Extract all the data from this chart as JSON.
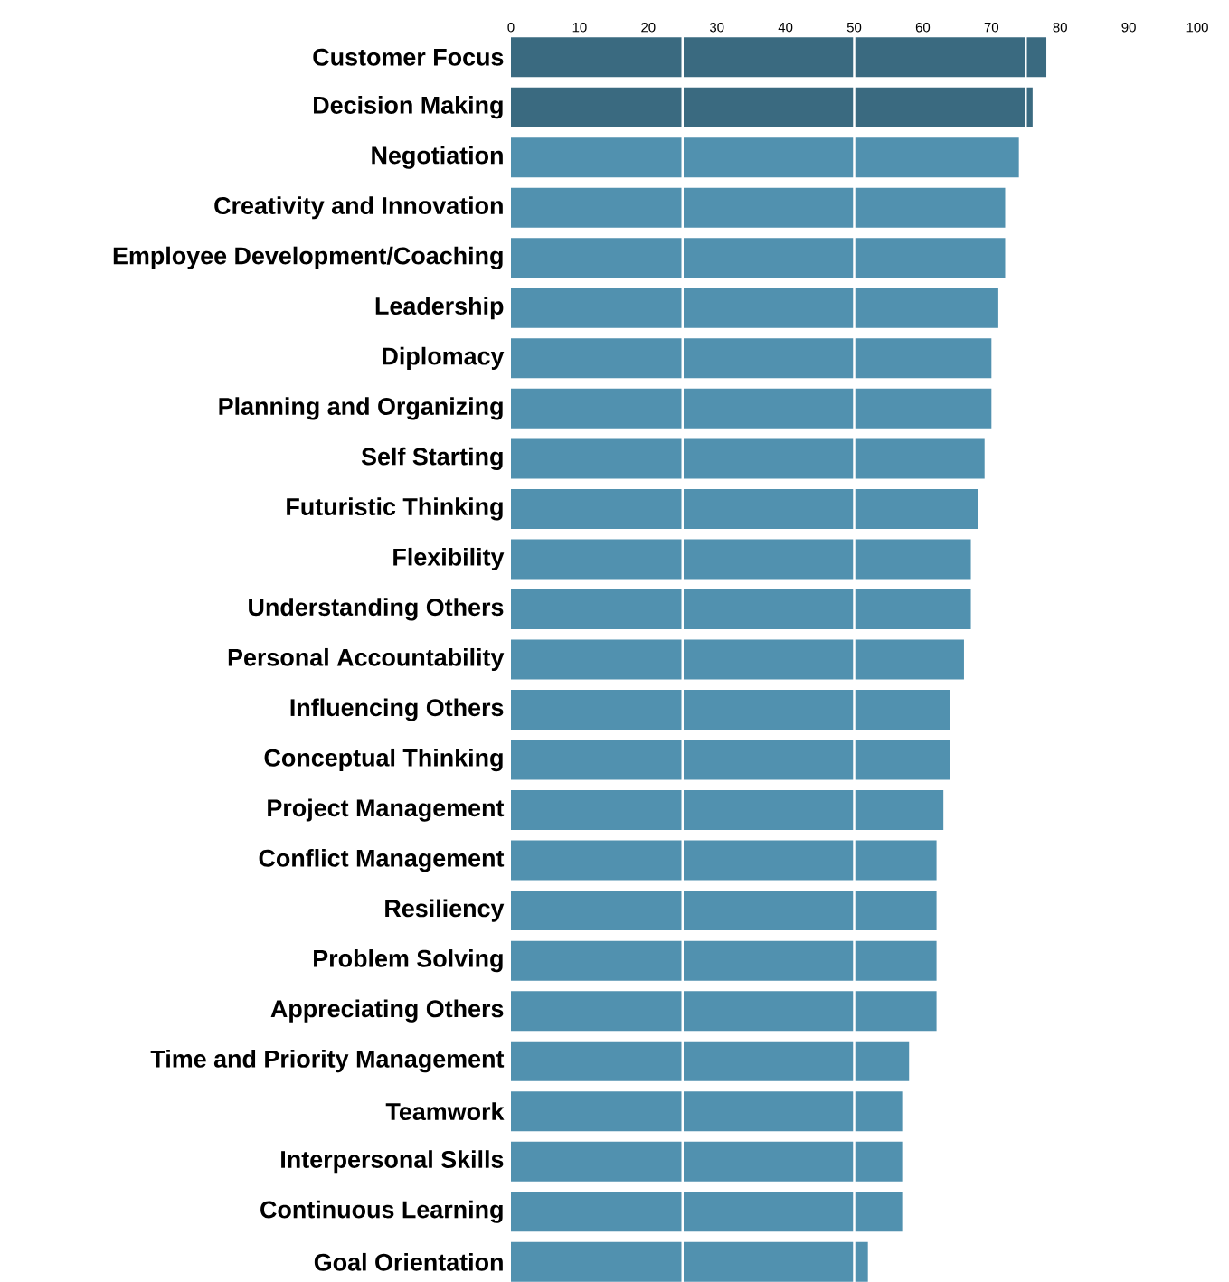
{
  "chart_data": {
    "type": "bar",
    "orientation": "horizontal",
    "categories": [
      "Customer Focus",
      "Decision Making",
      "Negotiation",
      "Creativity and Innovation",
      "Employee Development/Coaching",
      "Leadership",
      "Diplomacy",
      "Planning and Organizing",
      "Self Starting",
      "Futuristic Thinking",
      "Flexibility",
      "Understanding Others",
      "Personal Accountability",
      "Influencing Others",
      "Conceptual Thinking",
      "Project Management",
      "Conflict Management",
      "Resiliency",
      "Problem Solving",
      "Appreciating Others",
      "Time and Priority Management",
      "Teamwork",
      "Interpersonal Skills",
      "Continuous Learning",
      "Goal Orientation"
    ],
    "values": [
      78,
      76,
      74,
      72,
      72,
      71,
      70,
      70,
      69,
      68,
      67,
      67,
      66,
      64,
      64,
      63,
      62,
      62,
      62,
      62,
      58,
      57,
      57,
      57,
      52
    ],
    "colors": [
      "#3a6a80",
      "#3a6a80",
      "#5191af",
      "#5191af",
      "#5191af",
      "#5191af",
      "#5191af",
      "#5191af",
      "#5191af",
      "#5191af",
      "#5191af",
      "#5191af",
      "#5191af",
      "#5191af",
      "#5191af",
      "#5191af",
      "#5191af",
      "#5191af",
      "#5191af",
      "#5191af",
      "#5191af",
      "#5191af",
      "#5191af",
      "#5191af",
      "#5191af"
    ],
    "xlim": [
      0,
      100
    ],
    "xticks": [
      0,
      10,
      20,
      30,
      40,
      50,
      60,
      70,
      80,
      90,
      100
    ],
    "ref_lines": [
      {
        "axis": "x",
        "value": 25,
        "color": "#ffffff"
      },
      {
        "axis": "x",
        "value": 50,
        "color": "#ffffff"
      },
      {
        "axis": "x",
        "value": 75,
        "color": "#ffffff"
      }
    ]
  }
}
